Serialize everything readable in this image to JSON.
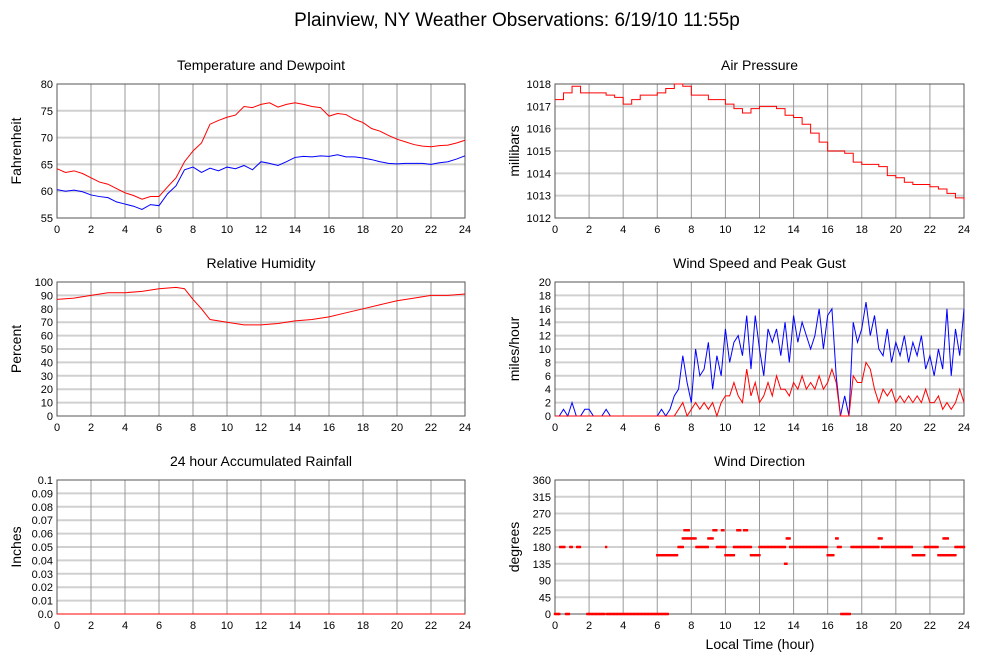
{
  "title": "Plainview, NY Weather Observations: 6/19/10 11:55p",
  "xlabel": "Local Time (hour)",
  "chart_data": [
    {
      "type": "line",
      "title": "Temperature and Dewpoint",
      "ylabel": "Fahrenheit",
      "xlim": [
        0,
        24
      ],
      "ylim": [
        55,
        80
      ],
      "xticks": [
        0,
        2,
        4,
        6,
        8,
        10,
        12,
        14,
        16,
        18,
        20,
        22,
        24
      ],
      "yticks": [
        55,
        60,
        65,
        70,
        75,
        80
      ],
      "grid": true,
      "series": [
        {
          "name": "Temperature",
          "color": "#ff0000",
          "style": "line",
          "x": [
            0,
            0.5,
            1,
            1.5,
            2,
            2.5,
            3,
            3.5,
            4,
            4.5,
            5,
            5.5,
            6,
            6.5,
            7,
            7.5,
            8,
            8.5,
            9,
            9.5,
            10,
            10.5,
            11,
            11.5,
            12,
            12.5,
            13,
            13.5,
            14,
            14.5,
            15,
            15.5,
            16,
            16.5,
            17,
            17.5,
            18,
            18.5,
            19,
            19.5,
            20,
            20.5,
            21,
            21.5,
            22,
            22.5,
            23,
            23.5,
            24
          ],
          "y": [
            64.2,
            63.5,
            63.8,
            63.3,
            62.5,
            61.7,
            61.3,
            60.5,
            59.7,
            59.2,
            58.5,
            59,
            59,
            60.8,
            62.5,
            65.5,
            67.5,
            69,
            72.5,
            73.2,
            73.8,
            74.2,
            75.8,
            75.6,
            76.2,
            76.5,
            75.7,
            76.2,
            76.5,
            76.2,
            75.8,
            75.6,
            74,
            74.5,
            74.3,
            73.4,
            72.8,
            71.7,
            71.2,
            70.4,
            69.7,
            69.2,
            68.7,
            68.4,
            68.3,
            68.5,
            68.6,
            69,
            69.5
          ]
        },
        {
          "name": "Dewpoint",
          "color": "#0000ff",
          "style": "line",
          "x": [
            0,
            0.5,
            1,
            1.5,
            2,
            2.5,
            3,
            3.5,
            4,
            4.5,
            5,
            5.5,
            6,
            6.5,
            7,
            7.5,
            8,
            8.5,
            9,
            9.5,
            10,
            10.5,
            11,
            11.5,
            12,
            12.5,
            13,
            13.5,
            14,
            14.5,
            15,
            15.5,
            16,
            16.5,
            17,
            17.5,
            18,
            18.5,
            19,
            19.5,
            20,
            20.5,
            21,
            21.5,
            22,
            22.5,
            23,
            23.5,
            24
          ],
          "y": [
            60.3,
            60,
            60.2,
            59.9,
            59.3,
            59,
            58.8,
            58,
            57.6,
            57.2,
            56.6,
            57.5,
            57.3,
            59.5,
            61,
            64,
            64.5,
            63.5,
            64.3,
            63.8,
            64.5,
            64.2,
            64.8,
            64,
            65.5,
            65.2,
            64.8,
            65.5,
            66.3,
            66.5,
            66.4,
            66.6,
            66.5,
            66.8,
            66.4,
            66.4,
            66.2,
            65.9,
            65.5,
            65.2,
            65.1,
            65.2,
            65.2,
            65.2,
            65,
            65.3,
            65.5,
            66,
            66.6
          ]
        }
      ]
    },
    {
      "type": "line",
      "title": "Air Pressure",
      "ylabel": "millibars",
      "xlim": [
        0,
        24
      ],
      "ylim": [
        1012,
        1018
      ],
      "xticks": [
        0,
        2,
        4,
        6,
        8,
        10,
        12,
        14,
        16,
        18,
        20,
        22,
        24
      ],
      "yticks": [
        1012,
        1013,
        1014,
        1015,
        1016,
        1017,
        1018
      ],
      "grid": true,
      "series": [
        {
          "name": "Pressure",
          "color": "#ff0000",
          "style": "step",
          "x": [
            0,
            0.5,
            1,
            1.5,
            2,
            3,
            3.5,
            4,
            4.5,
            5,
            6,
            6.5,
            7,
            7.5,
            8,
            9,
            10,
            10.5,
            11,
            11.5,
            12,
            13,
            13.5,
            14,
            14.5,
            15,
            15.5,
            16,
            17,
            17.5,
            18,
            19,
            19.5,
            20,
            20.5,
            21,
            21.5,
            22,
            22.5,
            23,
            23.5,
            24
          ],
          "y": [
            1017.3,
            1017.6,
            1017.9,
            1017.6,
            1017.6,
            1017.5,
            1017.4,
            1017.1,
            1017.3,
            1017.5,
            1017.6,
            1017.8,
            1018,
            1017.9,
            1017.5,
            1017.3,
            1017.1,
            1016.9,
            1016.7,
            1016.9,
            1017.0,
            1016.9,
            1016.6,
            1016.5,
            1016.2,
            1015.8,
            1015.4,
            1015.0,
            1014.9,
            1014.5,
            1014.4,
            1014.3,
            1013.9,
            1013.8,
            1013.6,
            1013.5,
            1013.5,
            1013.4,
            1013.3,
            1013.1,
            1012.9,
            1012.8
          ]
        }
      ]
    },
    {
      "type": "line",
      "title": "Relative Humidity",
      "ylabel": "Percent",
      "xlim": [
        0,
        24
      ],
      "ylim": [
        0,
        100
      ],
      "xticks": [
        0,
        2,
        4,
        6,
        8,
        10,
        12,
        14,
        16,
        18,
        20,
        22,
        24
      ],
      "yticks": [
        0,
        10,
        20,
        30,
        40,
        50,
        60,
        70,
        80,
        90,
        100
      ],
      "grid": true,
      "series": [
        {
          "name": "Relative Humidity",
          "color": "#ff0000",
          "style": "line",
          "x": [
            0,
            1,
            2,
            3,
            4,
            5,
            6,
            7,
            7.5,
            8,
            8.5,
            9,
            10,
            11,
            12,
            13,
            14,
            15,
            16,
            17,
            18,
            19,
            20,
            21,
            22,
            23,
            24
          ],
          "y": [
            87,
            88,
            90,
            92,
            92,
            93,
            95,
            96,
            95,
            87,
            80,
            72,
            70,
            68,
            68,
            69,
            71,
            72,
            74,
            77,
            80,
            83,
            86,
            88,
            90,
            90,
            91
          ]
        }
      ]
    },
    {
      "type": "line",
      "title": "Wind Speed and Peak Gust",
      "ylabel": "miles/hour",
      "xlim": [
        0,
        24
      ],
      "ylim": [
        0,
        20
      ],
      "xticks": [
        0,
        2,
        4,
        6,
        8,
        10,
        12,
        14,
        16,
        18,
        20,
        22,
        24
      ],
      "yticks": [
        0,
        2,
        4,
        6,
        8,
        10,
        12,
        14,
        16,
        18,
        20
      ],
      "grid": true,
      "x_step": 0.25,
      "series": [
        {
          "name": "Peak Gust",
          "color": "#0000ff",
          "style": "line",
          "y": [
            0,
            0,
            1,
            0,
            2,
            0,
            0,
            1,
            1,
            0,
            0,
            0,
            1,
            0,
            0,
            0,
            0,
            0,
            0,
            0,
            0,
            0,
            0,
            0,
            0,
            1,
            0,
            1,
            3,
            4,
            9,
            5,
            2,
            10,
            6,
            7,
            11,
            4,
            9,
            6,
            13,
            8,
            11,
            12,
            9,
            15,
            7,
            15,
            10,
            6,
            13,
            11,
            13,
            9,
            14,
            8,
            15,
            11,
            14,
            12,
            10,
            12,
            16,
            10,
            15,
            16,
            6,
            0,
            3,
            0,
            14,
            11,
            13,
            17,
            12,
            15,
            10,
            9,
            13,
            8,
            11,
            9,
            12,
            8,
            11,
            9,
            12,
            7,
            9,
            6,
            10,
            7,
            16,
            6,
            13,
            9,
            16
          ]
        },
        {
          "name": "Wind Speed",
          "color": "#ff0000",
          "style": "line",
          "y": [
            0,
            0,
            0,
            0,
            0,
            0,
            0,
            0,
            0,
            0,
            0,
            0,
            0,
            0,
            0,
            0,
            0,
            0,
            0,
            0,
            0,
            0,
            0,
            0,
            0,
            0,
            0,
            0,
            0,
            1,
            2,
            0,
            1,
            2,
            1,
            2,
            1,
            2,
            0,
            2,
            3,
            3,
            5,
            3,
            2,
            7,
            3,
            5,
            2,
            3,
            5,
            3,
            6,
            4,
            4,
            3,
            5,
            4,
            6,
            4,
            5,
            4,
            6,
            4,
            5,
            7,
            5,
            0,
            0,
            0,
            6,
            5,
            5,
            8,
            7,
            4,
            2,
            4,
            3,
            4,
            2,
            3,
            2,
            3,
            2,
            3,
            2,
            4,
            2,
            2,
            3,
            1,
            2,
            1,
            2,
            4,
            2
          ]
        }
      ]
    },
    {
      "type": "line",
      "title": "24 hour Accumulated Rainfall",
      "ylabel": "Inches",
      "xlim": [
        0,
        24
      ],
      "ylim": [
        0,
        0.1
      ],
      "xticks": [
        0,
        2,
        4,
        6,
        8,
        10,
        12,
        14,
        16,
        18,
        20,
        22,
        24
      ],
      "yticks": [
        "0.0",
        "0.01",
        "0.02",
        "0.03",
        "0.04",
        "0.05",
        "0.06",
        "0.07",
        "0.08",
        "0.09",
        "0.1"
      ],
      "grid": true,
      "series": [
        {
          "name": "Rainfall",
          "color": "#ff0000",
          "style": "line",
          "x": [
            0,
            24
          ],
          "y": [
            0,
            0
          ]
        }
      ]
    },
    {
      "type": "scatter",
      "title": "Wind Direction",
      "ylabel": "degrees",
      "xlabel": "Local Time (hour)",
      "xlim": [
        0,
        24
      ],
      "ylim": [
        0,
        360
      ],
      "xticks": [
        0,
        2,
        4,
        6,
        8,
        10,
        12,
        14,
        16,
        18,
        20,
        22,
        24
      ],
      "yticks": [
        0,
        45,
        90,
        135,
        180,
        225,
        270,
        315,
        360
      ],
      "grid": true,
      "x_step": 0.083,
      "series": [
        {
          "name": "Wind Direction",
          "color": "#ff0000",
          "style": "scatter",
          "runs": [
            [
              0,
              0.25,
              0
            ],
            [
              0.3,
              0.6,
              180
            ],
            [
              0.65,
              0.85,
              0
            ],
            [
              0.9,
              1.05,
              180
            ],
            [
              1.3,
              1.5,
              180
            ],
            [
              1.9,
              2.9,
              0
            ],
            [
              3.0,
              3.0,
              180
            ],
            [
              3.05,
              6.7,
              0
            ],
            [
              6.0,
              7.2,
              158
            ],
            [
              7.25,
              7.5,
              180
            ],
            [
              7.5,
              8.3,
              203
            ],
            [
              7.6,
              7.9,
              225
            ],
            [
              8.3,
              9.0,
              180
            ],
            [
              9.0,
              9.3,
              203
            ],
            [
              9.3,
              9.5,
              225
            ],
            [
              9.5,
              10.0,
              180
            ],
            [
              9.8,
              9.9,
              225
            ],
            [
              10.0,
              10.5,
              158
            ],
            [
              10.5,
              11.5,
              180
            ],
            [
              10.7,
              10.9,
              225
            ],
            [
              11.1,
              11.3,
              225
            ],
            [
              11.5,
              12.0,
              158
            ],
            [
              12.0,
              13.5,
              180
            ],
            [
              13.5,
              13.6,
              135
            ],
            [
              13.6,
              13.8,
              203
            ],
            [
              13.8,
              16.0,
              180
            ],
            [
              16.0,
              16.4,
              158
            ],
            [
              16.5,
              16.6,
              203
            ],
            [
              16.6,
              16.8,
              180
            ],
            [
              16.8,
              17.3,
              0
            ],
            [
              17.4,
              19.0,
              180
            ],
            [
              19.0,
              19.2,
              203
            ],
            [
              19.2,
              21.0,
              180
            ],
            [
              21.0,
              21.7,
              158
            ],
            [
              21.7,
              22.5,
              180
            ],
            [
              22.5,
              23.5,
              158
            ],
            [
              22.8,
              23.1,
              203
            ],
            [
              23.5,
              24,
              180
            ]
          ]
        }
      ]
    }
  ]
}
